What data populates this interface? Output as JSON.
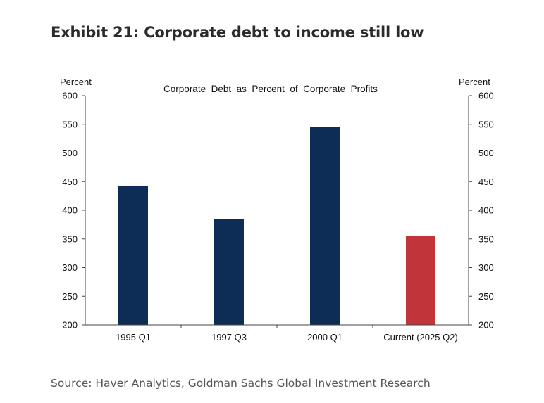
{
  "exhibit": {
    "title": "Exhibit 21: Corporate debt to income still low",
    "source": "Source: Haver Analytics, Goldman Sachs Global Investment Research"
  },
  "colors": {
    "primary_bar": "#0d2d57",
    "highlight_bar": "#c0343a",
    "axis": "#444444"
  },
  "chart_data": {
    "type": "bar",
    "title": "Corporate  Debt  as  Percent  of  Corporate  Profits",
    "ylabel_left": "Percent",
    "ylabel_right": "Percent",
    "categories": [
      "1995 Q1",
      "1997 Q3",
      "2000 Q1",
      "Current (2025 Q2)"
    ],
    "values": [
      443,
      385,
      545,
      355
    ],
    "highlight_index": 3,
    "ylim": [
      200,
      600
    ],
    "yticks": [
      200,
      250,
      300,
      350,
      400,
      450,
      500,
      550,
      600
    ],
    "grid": false,
    "legend": "none"
  }
}
